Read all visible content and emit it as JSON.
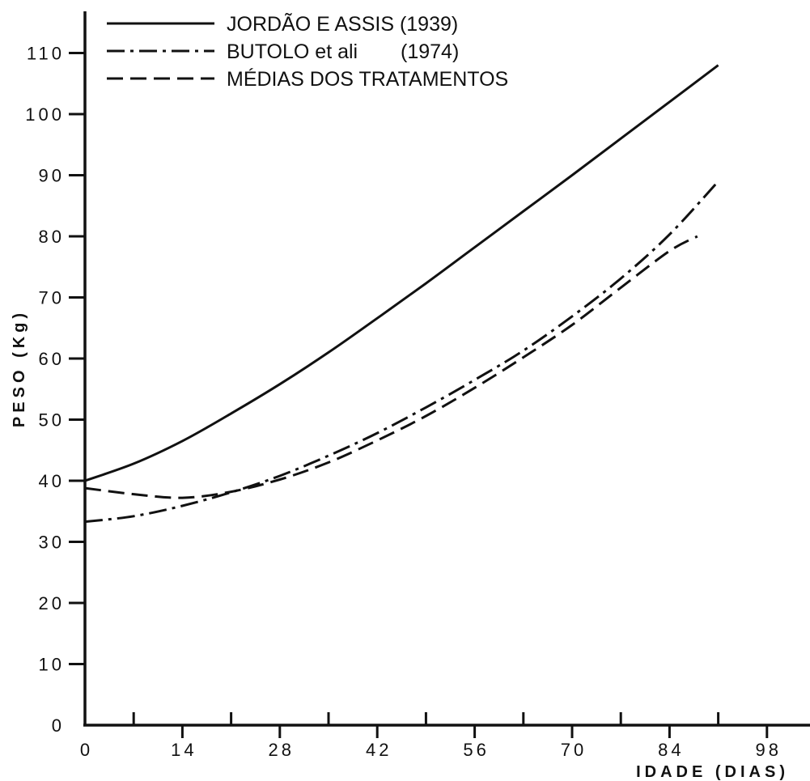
{
  "chart_data": {
    "type": "line",
    "xlabel": "IDADE (DIAS)",
    "ylabel": "PESO (Kg)",
    "xlim": [
      0,
      105
    ],
    "ylim": [
      0,
      117
    ],
    "x_ticks": [
      0,
      14,
      28,
      42,
      56,
      70,
      84,
      98
    ],
    "x_tick_labels": [
      "0",
      "14",
      "28",
      "42",
      "56",
      "70",
      "84",
      "98"
    ],
    "x_minor_ticks": [
      7,
      21,
      35,
      49,
      63,
      77,
      91
    ],
    "y_ticks": [
      0,
      10,
      20,
      30,
      40,
      50,
      60,
      70,
      80,
      90,
      100,
      110
    ],
    "y_tick_labels": [
      "0",
      "10",
      "20",
      "30",
      "40",
      "50",
      "60",
      "70",
      "80",
      "90",
      "100",
      "110"
    ],
    "grid": false,
    "legend_position": "top",
    "series": [
      {
        "name": "JORDÃO E ASSIS (1939)",
        "style": "solid",
        "x": [
          0,
          7,
          14,
          21,
          28,
          35,
          42,
          49,
          56,
          63,
          70,
          77,
          84,
          91
        ],
        "values": [
          40,
          42.8,
          46.5,
          51,
          55.8,
          61,
          66.6,
          72.3,
          78.2,
          84.1,
          90,
          96,
          102,
          108
        ]
      },
      {
        "name": "BUTOLO et ali",
        "name_suffix": "(1974)",
        "style": "dash-dot",
        "x": [
          0,
          7,
          14,
          21,
          28,
          35,
          42,
          49,
          56,
          63,
          70,
          77,
          84,
          91
        ],
        "values": [
          33.3,
          34.2,
          35.9,
          38.1,
          40.8,
          44.1,
          47.8,
          52,
          56.5,
          61.3,
          66.9,
          73.1,
          80.3,
          89
        ]
      },
      {
        "name": "MÉDIAS DOS TRATAMENTOS",
        "style": "dashed",
        "x": [
          0,
          7,
          14,
          21,
          28,
          35,
          42,
          49,
          56,
          63,
          70,
          77,
          84,
          88
        ],
        "values": [
          38.8,
          37.8,
          37.2,
          38.2,
          40.2,
          43,
          46.6,
          50.6,
          55.2,
          60.2,
          65.5,
          71.6,
          77.6,
          80
        ]
      }
    ]
  }
}
